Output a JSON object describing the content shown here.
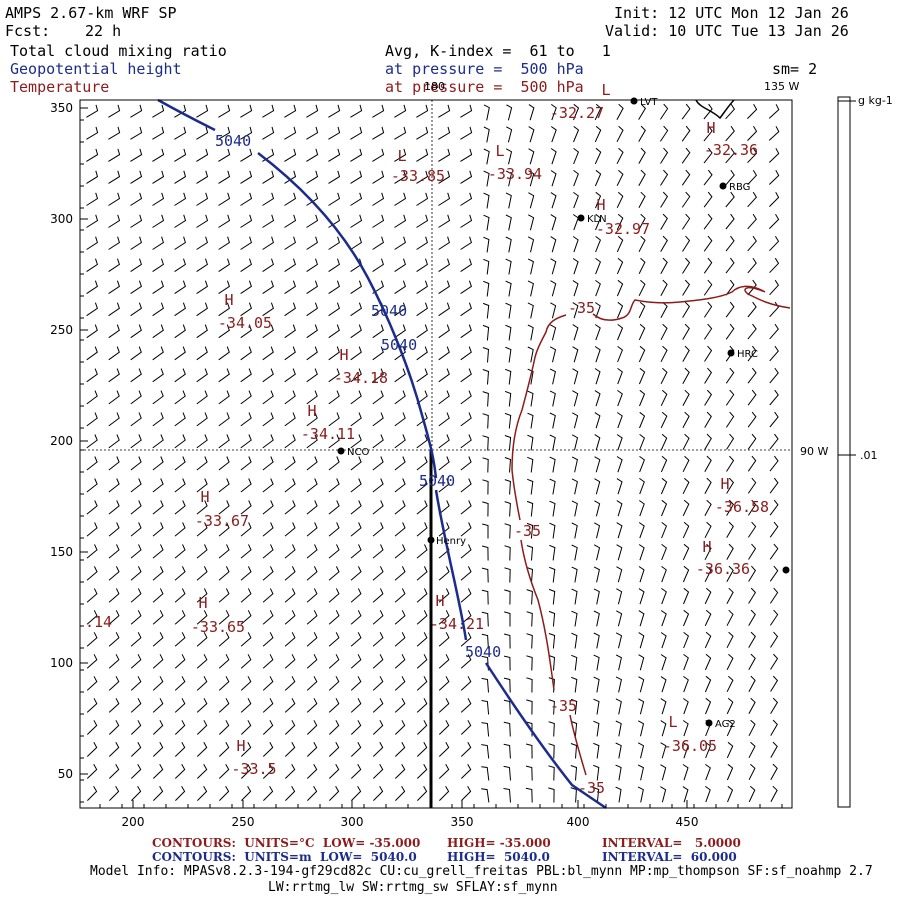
{
  "header": {
    "model": "AMPS 2.67-km WRF SP",
    "fcst_label": "Fcst:",
    "fcst_value": "22 h",
    "init": "Init: 12 UTC Mon 12 Jan 26",
    "valid": "Valid: 10 UTC Tue 13 Jan 26",
    "field1": "Total cloud mixing ratio",
    "field2": "Geopotential height",
    "field3": "Temperature",
    "avg": "Avg, K-index =  61 to   1",
    "press1": "at pressure =  500 hPa",
    "press2": "at pressure =  500 hPa",
    "sm": "sm= 2"
  },
  "map": {
    "colors": {
      "height": "#1c2c8c",
      "temperature": "#8c1c1c",
      "coast": "#000000"
    },
    "x_ticks": [
      "200",
      "250",
      "300",
      "350",
      "400",
      "450"
    ],
    "y_ticks": [
      "350",
      "300",
      "250",
      "200",
      "150",
      "100",
      "50"
    ],
    "meridian_labels": {
      "top": "180",
      "top_right": "135 W",
      "right": "90 W"
    },
    "colorbar": {
      "unit": "g kg-1",
      "value": ".01"
    },
    "edge_value": ".14",
    "height_labels": [
      "5040",
      "5040",
      "5040",
      "5040",
      "5040"
    ],
    "temp_contour_labels": [
      "-35",
      "-35",
      "-35",
      "-35"
    ],
    "extrema": [
      {
        "type": "H",
        "value": "-32.36"
      },
      {
        "type": "L",
        "value": "-32.27"
      },
      {
        "type": "L",
        "value": "-33.85"
      },
      {
        "type": "L",
        "value": "-33.94"
      },
      {
        "type": "H",
        "value": "-32.97"
      },
      {
        "type": "H",
        "value": "-34.05"
      },
      {
        "type": "H",
        "value": "-34.18"
      },
      {
        "type": "H",
        "value": "-34.11"
      },
      {
        "type": "H",
        "value": "-33.67"
      },
      {
        "type": "H",
        "value": "-33.65"
      },
      {
        "type": "H",
        "value": "-34.21"
      },
      {
        "type": "H",
        "value": "-33.5"
      },
      {
        "type": "H",
        "value": "-36.58"
      },
      {
        "type": "H",
        "value": "-36.36"
      },
      {
        "type": "L",
        "value": "-36.05"
      }
    ],
    "stations": [
      "LVT",
      "RBG",
      "KLN",
      "HRC",
      "NCO",
      "Henry",
      "AG2",
      ""
    ]
  },
  "footer": {
    "line1_a": "CONTOURS:  UNITS=°C  LOW= -35.000",
    "line1_b": "HIGH= -35.000",
    "line1_c": "INTERVAL=   5.0000",
    "line2_a": "CONTOURS:  UNITS=m  LOW=  5040.0",
    "line2_b": "HIGH=  5040.0",
    "line2_c": "INTERVAL=  60.000",
    "info1": "Model Info: MPASv8.2.3-194-gf29cd82c CU:cu_grell_freitas PBL:bl_mynn MP:mp_thompson SF:sf_noahmp 2.7",
    "info2": "LW:rrtmg_lw SW:rrtmg_sw SFLAY:sf_mynn"
  }
}
